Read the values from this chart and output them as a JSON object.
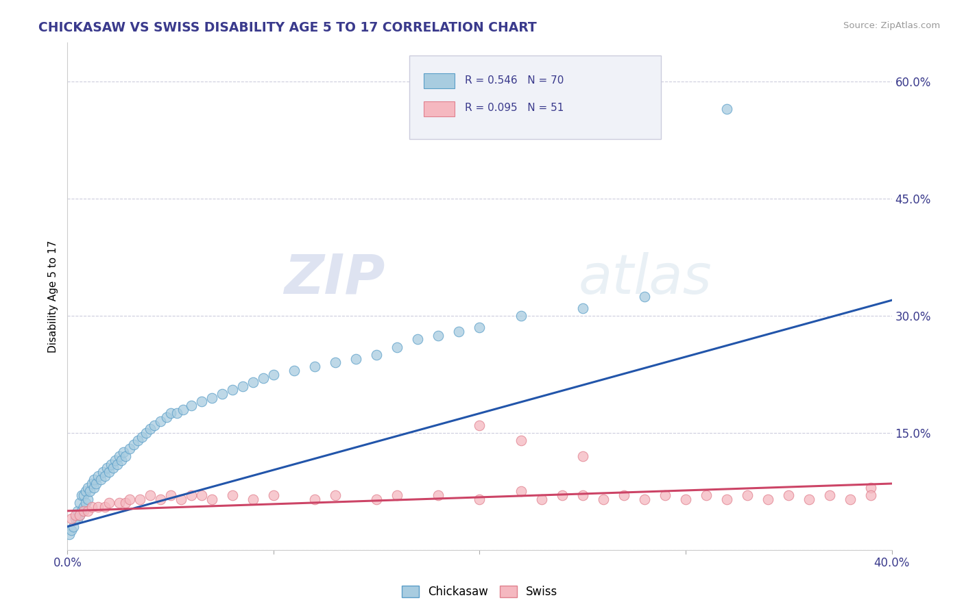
{
  "title": "CHICKASAW VS SWISS DISABILITY AGE 5 TO 17 CORRELATION CHART",
  "source": "Source: ZipAtlas.com",
  "ylabel": "Disability Age 5 to 17",
  "ylabel_right_ticks": [
    0.0,
    0.15,
    0.3,
    0.45,
    0.6
  ],
  "ylabel_right_labels": [
    "",
    "15.0%",
    "30.0%",
    "45.0%",
    "60.0%"
  ],
  "xmin": 0.0,
  "xmax": 0.4,
  "ymin": 0.0,
  "ymax": 0.65,
  "chickasaw_R": 0.546,
  "chickasaw_N": 70,
  "swiss_R": 0.095,
  "swiss_N": 51,
  "chickasaw_color": "#a8cce0",
  "swiss_color": "#f5b8c0",
  "chickasaw_edge_color": "#5a9ec8",
  "swiss_edge_color": "#e0808e",
  "chickasaw_line_color": "#2255aa",
  "swiss_line_color": "#cc4466",
  "watermark_zip": "ZIP",
  "watermark_atlas": "atlas",
  "legend_face": "#f0f2f8",
  "legend_edge": "#ccccdd",
  "bottom_legend_chickasaw": "Chickasaw",
  "bottom_legend_swiss": "Swiss",
  "chickasaw_x": [
    0.001,
    0.002,
    0.003,
    0.004,
    0.005,
    0.005,
    0.006,
    0.006,
    0.007,
    0.007,
    0.008,
    0.008,
    0.009,
    0.009,
    0.01,
    0.01,
    0.011,
    0.012,
    0.013,
    0.013,
    0.014,
    0.015,
    0.016,
    0.017,
    0.018,
    0.019,
    0.02,
    0.021,
    0.022,
    0.023,
    0.024,
    0.025,
    0.026,
    0.027,
    0.028,
    0.03,
    0.032,
    0.034,
    0.036,
    0.038,
    0.04,
    0.042,
    0.045,
    0.048,
    0.05,
    0.053,
    0.056,
    0.06,
    0.065,
    0.07,
    0.075,
    0.08,
    0.085,
    0.09,
    0.095,
    0.1,
    0.11,
    0.12,
    0.13,
    0.14,
    0.15,
    0.16,
    0.17,
    0.18,
    0.19,
    0.2,
    0.22,
    0.25,
    0.28,
    0.32
  ],
  "chickasaw_y": [
    0.02,
    0.025,
    0.03,
    0.04,
    0.04,
    0.05,
    0.045,
    0.06,
    0.05,
    0.07,
    0.055,
    0.07,
    0.06,
    0.075,
    0.065,
    0.08,
    0.075,
    0.085,
    0.08,
    0.09,
    0.085,
    0.095,
    0.09,
    0.1,
    0.095,
    0.105,
    0.1,
    0.11,
    0.105,
    0.115,
    0.11,
    0.12,
    0.115,
    0.125,
    0.12,
    0.13,
    0.135,
    0.14,
    0.145,
    0.15,
    0.155,
    0.16,
    0.165,
    0.17,
    0.175,
    0.175,
    0.18,
    0.185,
    0.19,
    0.195,
    0.2,
    0.205,
    0.21,
    0.215,
    0.22,
    0.225,
    0.23,
    0.235,
    0.24,
    0.245,
    0.25,
    0.26,
    0.27,
    0.275,
    0.28,
    0.285,
    0.3,
    0.31,
    0.325,
    0.565
  ],
  "swiss_x": [
    0.002,
    0.004,
    0.006,
    0.008,
    0.01,
    0.012,
    0.015,
    0.018,
    0.02,
    0.025,
    0.028,
    0.03,
    0.035,
    0.04,
    0.045,
    0.05,
    0.055,
    0.06,
    0.065,
    0.07,
    0.08,
    0.09,
    0.1,
    0.12,
    0.13,
    0.15,
    0.16,
    0.18,
    0.2,
    0.22,
    0.23,
    0.24,
    0.25,
    0.26,
    0.27,
    0.28,
    0.29,
    0.3,
    0.31,
    0.32,
    0.33,
    0.34,
    0.35,
    0.36,
    0.37,
    0.38,
    0.39,
    0.39,
    0.2,
    0.22,
    0.25
  ],
  "swiss_y": [
    0.04,
    0.045,
    0.045,
    0.05,
    0.05,
    0.055,
    0.055,
    0.055,
    0.06,
    0.06,
    0.06,
    0.065,
    0.065,
    0.07,
    0.065,
    0.07,
    0.065,
    0.07,
    0.07,
    0.065,
    0.07,
    0.065,
    0.07,
    0.065,
    0.07,
    0.065,
    0.07,
    0.07,
    0.065,
    0.075,
    0.065,
    0.07,
    0.07,
    0.065,
    0.07,
    0.065,
    0.07,
    0.065,
    0.07,
    0.065,
    0.07,
    0.065,
    0.07,
    0.065,
    0.07,
    0.065,
    0.08,
    0.07,
    0.16,
    0.14,
    0.12
  ]
}
